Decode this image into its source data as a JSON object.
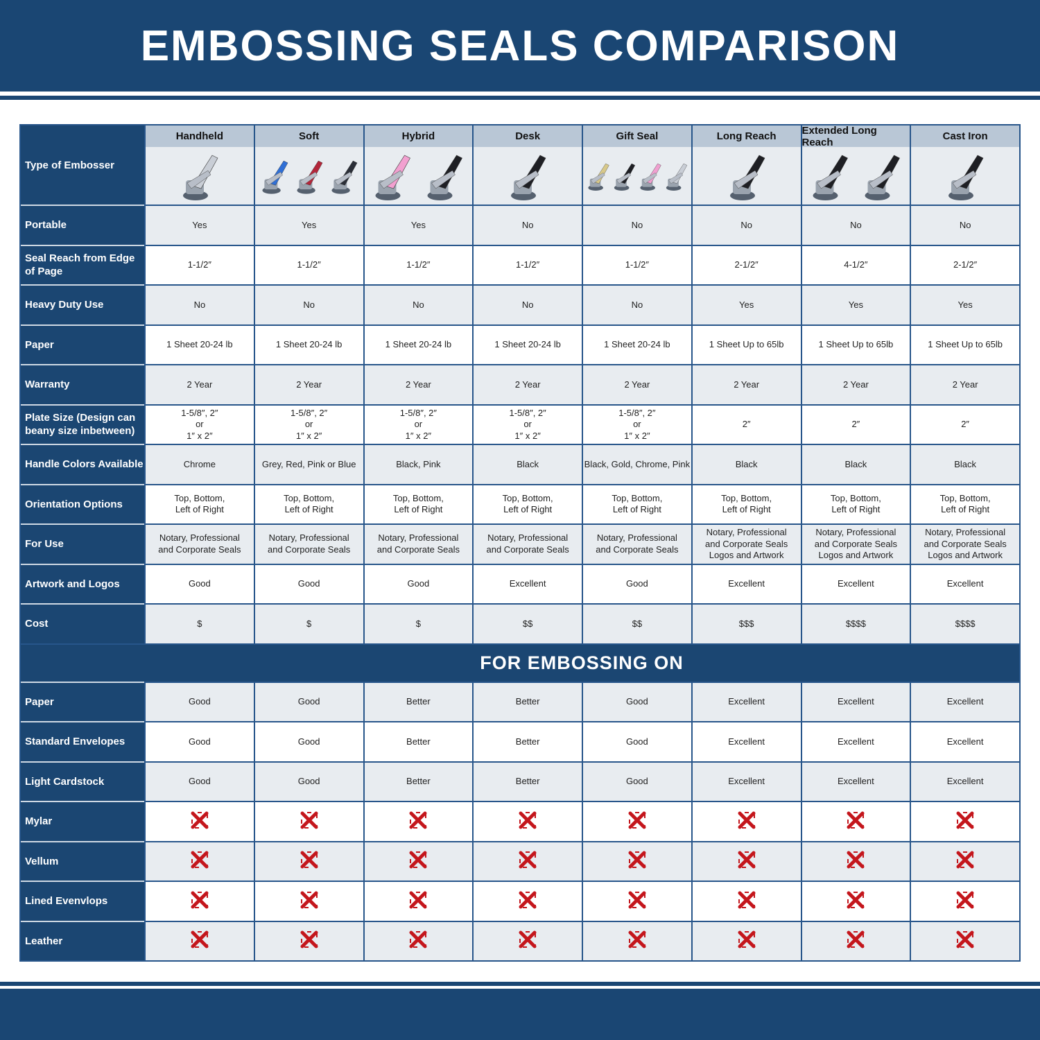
{
  "title": "EMBOSSING SEALS COMPARISON",
  "header_label": "Type of Embosser",
  "products": [
    {
      "name": "Handheld",
      "handle_colors": [
        "#c9ced6"
      ]
    },
    {
      "name": "Soft",
      "handle_colors": [
        "#2f6fd6",
        "#b3263a",
        "#2b2f38"
      ]
    },
    {
      "name": "Hybrid",
      "handle_colors": [
        "#f2a0d0",
        "#1e1f24"
      ]
    },
    {
      "name": "Desk",
      "handle_colors": [
        "#1e1f24"
      ]
    },
    {
      "name": "Gift Seal",
      "handle_colors": [
        "#d8c98a",
        "#1e1f24",
        "#f0a0d0",
        "#c9ced6"
      ]
    },
    {
      "name": "Long Reach",
      "handle_colors": [
        "#1e1f24"
      ]
    },
    {
      "name": "Extended Long Reach",
      "handle_colors": [
        "#1e1f24",
        "#1e1f24"
      ]
    },
    {
      "name": "Cast Iron",
      "handle_colors": [
        "#1e1f24"
      ]
    }
  ],
  "rows": [
    {
      "label": "Portable",
      "values": [
        "Yes",
        "Yes",
        "Yes",
        "No",
        "No",
        "No",
        "No",
        "No"
      ]
    },
    {
      "label": "Seal Reach from Edge\nof Page",
      "values": [
        "1-1/2″",
        "1-1/2″",
        "1-1/2″",
        "1-1/2″",
        "1-1/2″",
        "2-1/2″",
        "4-1/2″",
        "2-1/2″"
      ]
    },
    {
      "label": "Heavy Duty Use",
      "values": [
        "No",
        "No",
        "No",
        "No",
        "No",
        "Yes",
        "Yes",
        "Yes"
      ]
    },
    {
      "label": "Paper",
      "values": [
        "1 Sheet 20-24 lb",
        "1 Sheet 20-24 lb",
        "1 Sheet 20-24 lb",
        "1 Sheet 20-24 lb",
        "1 Sheet 20-24 lb",
        "1 Sheet Up to 65lb",
        "1 Sheet Up to 65lb",
        "1 Sheet Up to 65lb"
      ]
    },
    {
      "label": "Warranty",
      "values": [
        "2 Year",
        "2 Year",
        "2 Year",
        "2 Year",
        "2 Year",
        "2 Year",
        "2 Year",
        "2 Year"
      ]
    },
    {
      "label": "Plate Size (Design can\nbeany size inbetween)",
      "values": [
        "1-5/8″, 2″\nor\n1″ x 2″",
        "1-5/8″, 2″\nor\n1″ x 2″",
        "1-5/8″, 2″\nor\n1″ x 2″",
        "1-5/8″, 2″\nor\n1″ x 2″",
        "1-5/8″, 2″\nor\n1″ x 2″",
        "2″",
        "2″",
        "2″"
      ]
    },
    {
      "label": "Handle Colors Available",
      "values": [
        "Chrome",
        "Grey, Red, Pink or Blue",
        "Black, Pink",
        "Black",
        "Black, Gold, Chrome, Pink",
        "Black",
        "Black",
        "Black"
      ]
    },
    {
      "label": "Orientation Options",
      "values": [
        "Top, Bottom,\nLeft of Right",
        "Top, Bottom,\nLeft of Right",
        "Top, Bottom,\nLeft of Right",
        "Top, Bottom,\nLeft of Right",
        "Top, Bottom,\nLeft of Right",
        "Top, Bottom,\nLeft of Right",
        "Top, Bottom,\nLeft of Right",
        "Top, Bottom,\nLeft of Right"
      ]
    },
    {
      "label": "For Use",
      "values": [
        "Notary, Professional\nand Corporate Seals",
        "Notary, Professional\nand Corporate Seals",
        "Notary, Professional\nand Corporate Seals",
        "Notary, Professional\nand Corporate Seals",
        "Notary, Professional\nand Corporate Seals",
        "Notary, Professional\nand Corporate Seals\nLogos and Artwork",
        "Notary, Professional\nand Corporate Seals\nLogos and Artwork",
        "Notary, Professional\nand Corporate Seals\nLogos and Artwork"
      ]
    },
    {
      "label": "Artwork and Logos",
      "values": [
        "Good",
        "Good",
        "Good",
        "Excellent",
        "Good",
        "Excellent",
        "Excellent",
        "Excellent"
      ]
    },
    {
      "label": "Cost",
      "values": [
        "$",
        "$",
        "$",
        "$$",
        "$$",
        "$$$",
        "$$$$",
        "$$$$"
      ]
    }
  ],
  "section_title": "FOR EMBOSSING ON",
  "embossing_rows": [
    {
      "label": "Paper",
      "values": [
        "Good",
        "Good",
        "Better",
        "Better",
        "Good",
        "Excellent",
        "Excellent",
        "Excellent"
      ]
    },
    {
      "label": "Standard Envelopes",
      "values": [
        "Good",
        "Good",
        "Better",
        "Better",
        "Good",
        "Excellent",
        "Excellent",
        "Excellent"
      ]
    },
    {
      "label": "Light Cardstock",
      "values": [
        "Good",
        "Good",
        "Better",
        "Better",
        "Good",
        "Excellent",
        "Excellent",
        "Excellent"
      ]
    },
    {
      "label": "Mylar",
      "icon": "red-x-icon"
    },
    {
      "label": "Vellum",
      "icon": "red-x-icon"
    },
    {
      "label": "Lined Evenvlops",
      "icon": "red-x-icon"
    },
    {
      "label": "Leather",
      "icon": "red-x-icon"
    }
  ],
  "colors": {
    "navy": "#1b4672",
    "header_band": "#b9c7d6",
    "alt_row": "#e8ecf0",
    "x_red": "#c4161c"
  }
}
